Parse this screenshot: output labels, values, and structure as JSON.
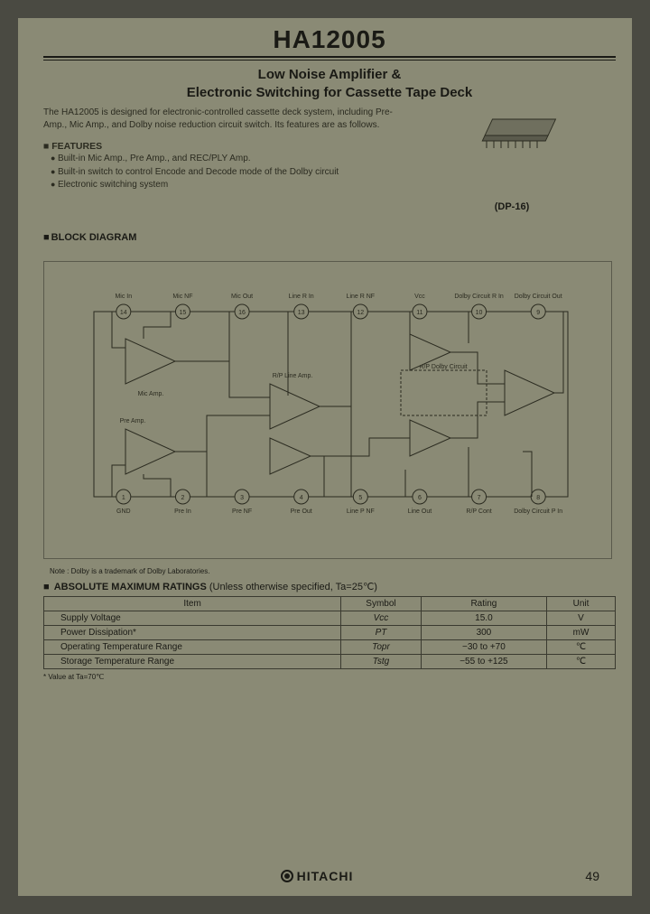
{
  "title": "HA12005",
  "subtitle_l1": "Low Noise Amplifier &",
  "subtitle_l2": "Electronic Switching for Cassette Tape Deck",
  "intro": "The HA12005 is designed for electronic-controlled cassette deck system, including Pre-Amp., Mic Amp., and Dolby noise reduction circuit switch. Its features are as follows.",
  "features_heading": "FEATURES",
  "features": [
    "Built-in Mic Amp., Pre Amp., and REC/PLY Amp.",
    "Built-in switch to control Encode and Decode mode of the Dolby circuit",
    "Electronic switching system"
  ],
  "package_label": "(DP-16)",
  "section_block_diagram": "BLOCK DIAGRAM",
  "diagram": {
    "top_pins": [
      {
        "n": "14",
        "l": "Mic In"
      },
      {
        "n": "15",
        "l": "Mic NF"
      },
      {
        "n": "16",
        "l": "Mic Out"
      },
      {
        "n": "13",
        "l": "Line R In"
      },
      {
        "n": "12",
        "l": "Line R NF"
      },
      {
        "n": "11",
        "l": "Vcc"
      },
      {
        "n": "10",
        "l": "Dolby Circuit R In"
      },
      {
        "n": "9",
        "l": "Dolby Circuit Out"
      }
    ],
    "bottom_pins": [
      {
        "n": "1",
        "l": "GND"
      },
      {
        "n": "2",
        "l": "Pre In"
      },
      {
        "n": "3",
        "l": "Pre NF"
      },
      {
        "n": "4",
        "l": "Pre Out"
      },
      {
        "n": "5",
        "l": "Line P NF"
      },
      {
        "n": "6",
        "l": "Line Out"
      },
      {
        "n": "7",
        "l": "R/P Cont"
      },
      {
        "n": "8",
        "l": "Dolby Circuit P In"
      }
    ],
    "amp_labels": {
      "mic": "Mic Amp.",
      "pre": "Pre Amp.",
      "rp_line": "R/P Line Amp.",
      "rp_dolby": "R/P Dolby Circuit"
    }
  },
  "note": "Note : Dolby is a trademark of Dolby Laboratories.",
  "ratings_heading": "ABSOLUTE MAXIMUM RATINGS",
  "ratings_cond": "(Unless otherwise specified, Ta=25℃)",
  "ratings_headers": [
    "Item",
    "Symbol",
    "Rating",
    "Unit"
  ],
  "ratings_rows": [
    {
      "item": "Supply Voltage",
      "symbol": "Vcc",
      "rating": "15.0",
      "unit": "V"
    },
    {
      "item": "Power Dissipation*",
      "symbol": "PT",
      "rating": "300",
      "unit": "mW"
    },
    {
      "item": "Operating Temperature Range",
      "symbol": "Topr",
      "rating": "−30 to +70",
      "unit": "℃"
    },
    {
      "item": "Storage Temperature Range",
      "symbol": "Tstg",
      "rating": "−55 to +125",
      "unit": "℃"
    }
  ],
  "footnote": "* Value at Ta=70℃",
  "brand": "HITACHI",
  "page_number": "49",
  "colors": {
    "page_bg": "#8a8a75",
    "ink": "#1a1a15"
  }
}
